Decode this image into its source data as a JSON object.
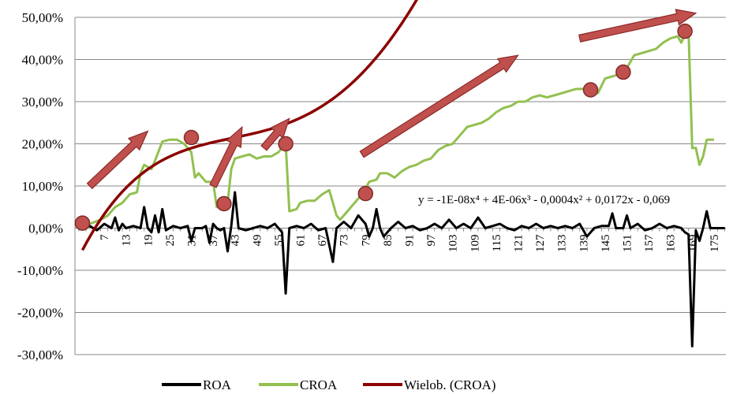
{
  "chart_data": {
    "type": "line",
    "ylim": [
      -0.3,
      0.5
    ],
    "xlim": [
      1,
      179
    ],
    "y_ticks": [
      "50,00%",
      "40,00%",
      "30,00%",
      "20,00%",
      "10,00%",
      "0,00%",
      "-10,00%",
      "-20,00%",
      "-30,00%"
    ],
    "y_tick_values": [
      0.5,
      0.4,
      0.3,
      0.2,
      0.1,
      0.0,
      -0.1,
      -0.2,
      -0.3
    ],
    "x_ticks": [
      "7",
      "13",
      "19",
      "25",
      "31",
      "37",
      "43",
      "49",
      "55",
      "61",
      "67",
      "73",
      "79",
      "85",
      "91",
      "97",
      "103",
      "109",
      "115",
      "121",
      "127",
      "133",
      "139",
      "145",
      "151",
      "157",
      "163",
      "169",
      "175"
    ],
    "x_tick_values": [
      7,
      13,
      19,
      25,
      31,
      37,
      43,
      49,
      55,
      61,
      67,
      73,
      79,
      85,
      91,
      97,
      103,
      109,
      115,
      121,
      127,
      133,
      139,
      145,
      151,
      157,
      163,
      169,
      175
    ],
    "grid": true,
    "legend_position": "bottom",
    "series": [
      {
        "name": "ROA",
        "color": "#000000",
        "points": [
          [
            1,
            0.0
          ],
          [
            3,
            0.005
          ],
          [
            5,
            -0.005
          ],
          [
            7,
            0.01
          ],
          [
            9,
            0.0
          ],
          [
            10,
            0.025
          ],
          [
            11,
            -0.005
          ],
          [
            12,
            0.01
          ],
          [
            13,
            0.0
          ],
          [
            15,
            0.005
          ],
          [
            17,
            0.0
          ],
          [
            18,
            0.05
          ],
          [
            19,
            0.0
          ],
          [
            20,
            -0.01
          ],
          [
            21,
            0.03
          ],
          [
            22,
            -0.01
          ],
          [
            23,
            0.045
          ],
          [
            24,
            -0.005
          ],
          [
            26,
            0.005
          ],
          [
            28,
            0.0
          ],
          [
            30,
            0.005
          ],
          [
            31,
            -0.03
          ],
          [
            32,
            0.0
          ],
          [
            34,
            0.0
          ],
          [
            35,
            0.005
          ],
          [
            36,
            -0.035
          ],
          [
            37,
            0.01
          ],
          [
            38,
            0.0
          ],
          [
            39,
            -0.005
          ],
          [
            40,
            0.0
          ],
          [
            41,
            -0.055
          ],
          [
            42,
            0.005
          ],
          [
            43,
            0.085
          ],
          [
            44,
            0.0
          ],
          [
            46,
            -0.005
          ],
          [
            48,
            0.0
          ],
          [
            50,
            0.005
          ],
          [
            52,
            0.0
          ],
          [
            54,
            0.01
          ],
          [
            56,
            -0.01
          ],
          [
            57,
            -0.155
          ],
          [
            58,
            0.0
          ],
          [
            60,
            0.005
          ],
          [
            62,
            0.0
          ],
          [
            64,
            0.01
          ],
          [
            66,
            -0.005
          ],
          [
            68,
            0.0
          ],
          [
            70,
            -0.08
          ],
          [
            71,
            0.0
          ],
          [
            73,
            0.015
          ],
          [
            75,
            0.0
          ],
          [
            77,
            0.03
          ],
          [
            79,
            0.01
          ],
          [
            80,
            -0.02
          ],
          [
            81,
            0.0
          ],
          [
            82,
            0.045
          ],
          [
            83,
            0.0
          ],
          [
            84,
            -0.02
          ],
          [
            86,
            0.0
          ],
          [
            88,
            0.015
          ],
          [
            90,
            0.0
          ],
          [
            92,
            0.005
          ],
          [
            94,
            -0.005
          ],
          [
            96,
            0.0
          ],
          [
            98,
            0.01
          ],
          [
            100,
            0.0
          ],
          [
            102,
            0.02
          ],
          [
            104,
            0.0
          ],
          [
            106,
            0.01
          ],
          [
            108,
            0.0
          ],
          [
            110,
            0.025
          ],
          [
            112,
            0.0
          ],
          [
            114,
            0.005
          ],
          [
            116,
            0.01
          ],
          [
            118,
            0.0
          ],
          [
            120,
            -0.005
          ],
          [
            122,
            0.005
          ],
          [
            124,
            0.0
          ],
          [
            126,
            0.01
          ],
          [
            128,
            0.0
          ],
          [
            130,
            0.005
          ],
          [
            132,
            0.0
          ],
          [
            134,
            0.005
          ],
          [
            136,
            0.0
          ],
          [
            138,
            0.01
          ],
          [
            140,
            -0.02
          ],
          [
            142,
            0.0
          ],
          [
            144,
            0.005
          ],
          [
            146,
            0.005
          ],
          [
            147,
            0.035
          ],
          [
            148,
            0.0
          ],
          [
            150,
            0.0
          ],
          [
            151,
            0.03
          ],
          [
            152,
            0.0
          ],
          [
            154,
            0.01
          ],
          [
            156,
            -0.005
          ],
          [
            158,
            0.0
          ],
          [
            160,
            0.01
          ],
          [
            162,
            0.0
          ],
          [
            164,
            0.005
          ],
          [
            166,
            0.0
          ],
          [
            167,
            -0.01
          ],
          [
            168,
            -0.015
          ],
          [
            169,
            -0.28
          ],
          [
            170,
            -0.005
          ],
          [
            171,
            -0.03
          ],
          [
            172,
            0.0
          ],
          [
            173,
            0.04
          ],
          [
            174,
            0.0
          ],
          [
            176,
            0.0
          ],
          [
            178,
            0.0
          ]
        ]
      },
      {
        "name": "CROA",
        "color": "#92c050",
        "points": [
          [
            3,
            0.01
          ],
          [
            6,
            0.02
          ],
          [
            8,
            0.03
          ],
          [
            10,
            0.05
          ],
          [
            12,
            0.06
          ],
          [
            14,
            0.08
          ],
          [
            16,
            0.085
          ],
          [
            17,
            0.13
          ],
          [
            18,
            0.15
          ],
          [
            20,
            0.14
          ],
          [
            21,
            0.16
          ],
          [
            23,
            0.205
          ],
          [
            25,
            0.21
          ],
          [
            27,
            0.21
          ],
          [
            29,
            0.2
          ],
          [
            31,
            0.18
          ],
          [
            32,
            0.12
          ],
          [
            33,
            0.13
          ],
          [
            35,
            0.11
          ],
          [
            37,
            0.11
          ],
          [
            38,
            0.05
          ],
          [
            40,
            0.055
          ],
          [
            41,
            0.06
          ],
          [
            42,
            0.14
          ],
          [
            43,
            0.165
          ],
          [
            45,
            0.17
          ],
          [
            47,
            0.175
          ],
          [
            49,
            0.165
          ],
          [
            51,
            0.17
          ],
          [
            53,
            0.17
          ],
          [
            55,
            0.18
          ],
          [
            57,
            0.2
          ],
          [
            58,
            0.04
          ],
          [
            60,
            0.045
          ],
          [
            61,
            0.06
          ],
          [
            63,
            0.065
          ],
          [
            65,
            0.065
          ],
          [
            67,
            0.08
          ],
          [
            69,
            0.09
          ],
          [
            71,
            0.03
          ],
          [
            72,
            0.02
          ],
          [
            74,
            0.04
          ],
          [
            76,
            0.06
          ],
          [
            78,
            0.08
          ],
          [
            80,
            0.11
          ],
          [
            82,
            0.115
          ],
          [
            83,
            0.13
          ],
          [
            85,
            0.13
          ],
          [
            87,
            0.12
          ],
          [
            89,
            0.135
          ],
          [
            91,
            0.145
          ],
          [
            93,
            0.15
          ],
          [
            95,
            0.16
          ],
          [
            97,
            0.165
          ],
          [
            99,
            0.185
          ],
          [
            101,
            0.195
          ],
          [
            103,
            0.2
          ],
          [
            105,
            0.22
          ],
          [
            107,
            0.24
          ],
          [
            109,
            0.245
          ],
          [
            111,
            0.25
          ],
          [
            113,
            0.26
          ],
          [
            115,
            0.275
          ],
          [
            117,
            0.285
          ],
          [
            119,
            0.29
          ],
          [
            121,
            0.3
          ],
          [
            123,
            0.3
          ],
          [
            125,
            0.31
          ],
          [
            127,
            0.315
          ],
          [
            129,
            0.31
          ],
          [
            131,
            0.315
          ],
          [
            133,
            0.32
          ],
          [
            135,
            0.325
          ],
          [
            137,
            0.33
          ],
          [
            139,
            0.33
          ],
          [
            141,
            0.325
          ],
          [
            143,
            0.32
          ],
          [
            145,
            0.355
          ],
          [
            147,
            0.36
          ],
          [
            149,
            0.365
          ],
          [
            151,
            0.38
          ],
          [
            153,
            0.41
          ],
          [
            155,
            0.415
          ],
          [
            157,
            0.42
          ],
          [
            159,
            0.425
          ],
          [
            161,
            0.44
          ],
          [
            163,
            0.45
          ],
          [
            165,
            0.455
          ],
          [
            166,
            0.44
          ],
          [
            167,
            0.46
          ],
          [
            168,
            0.465
          ],
          [
            169,
            0.19
          ],
          [
            170,
            0.19
          ],
          [
            171,
            0.15
          ],
          [
            172,
            0.17
          ],
          [
            173,
            0.21
          ],
          [
            175,
            0.21
          ]
        ]
      },
      {
        "name": "Wielob. (CROA)",
        "color": "#8b0000",
        "equation": "y = -1E-08x⁴ + 4E-06x³ - 0,0004x² + 0,0172x - 0,069",
        "coefficients": {
          "a4": -1e-08,
          "a3": 4e-06,
          "a2": -0.0004,
          "a1": 0.0172,
          "a0": -0.069
        },
        "x_range": [
          1,
          179
        ]
      }
    ],
    "markers": [
      [
        1,
        0.012
      ],
      [
        31,
        0.215
      ],
      [
        40,
        0.058
      ],
      [
        57,
        0.2
      ],
      [
        79,
        0.082
      ],
      [
        141,
        0.328
      ],
      [
        150,
        0.37
      ],
      [
        167,
        0.467
      ]
    ],
    "arrows": [
      [
        [
          3,
          0.1
        ],
        [
          19,
          0.23
        ]
      ],
      [
        [
          37,
          0.1
        ],
        [
          45,
          0.24
        ]
      ],
      [
        [
          51,
          0.19
        ],
        [
          58,
          0.26
        ]
      ],
      [
        [
          78,
          0.175
        ],
        [
          121,
          0.41
        ]
      ],
      [
        [
          138,
          0.45
        ],
        [
          170,
          0.51
        ]
      ]
    ]
  },
  "annotation": {
    "equation_text": "y = -1E-08x⁴ + 4E-06x³ - 0,0004x² + 0,0172x - 0,069"
  },
  "legend": {
    "items": [
      {
        "label": "ROA",
        "color": "#000000"
      },
      {
        "label": "CROA",
        "color": "#92c050"
      },
      {
        "label": "Wielob. (CROA)",
        "color": "#8b0000"
      }
    ]
  }
}
